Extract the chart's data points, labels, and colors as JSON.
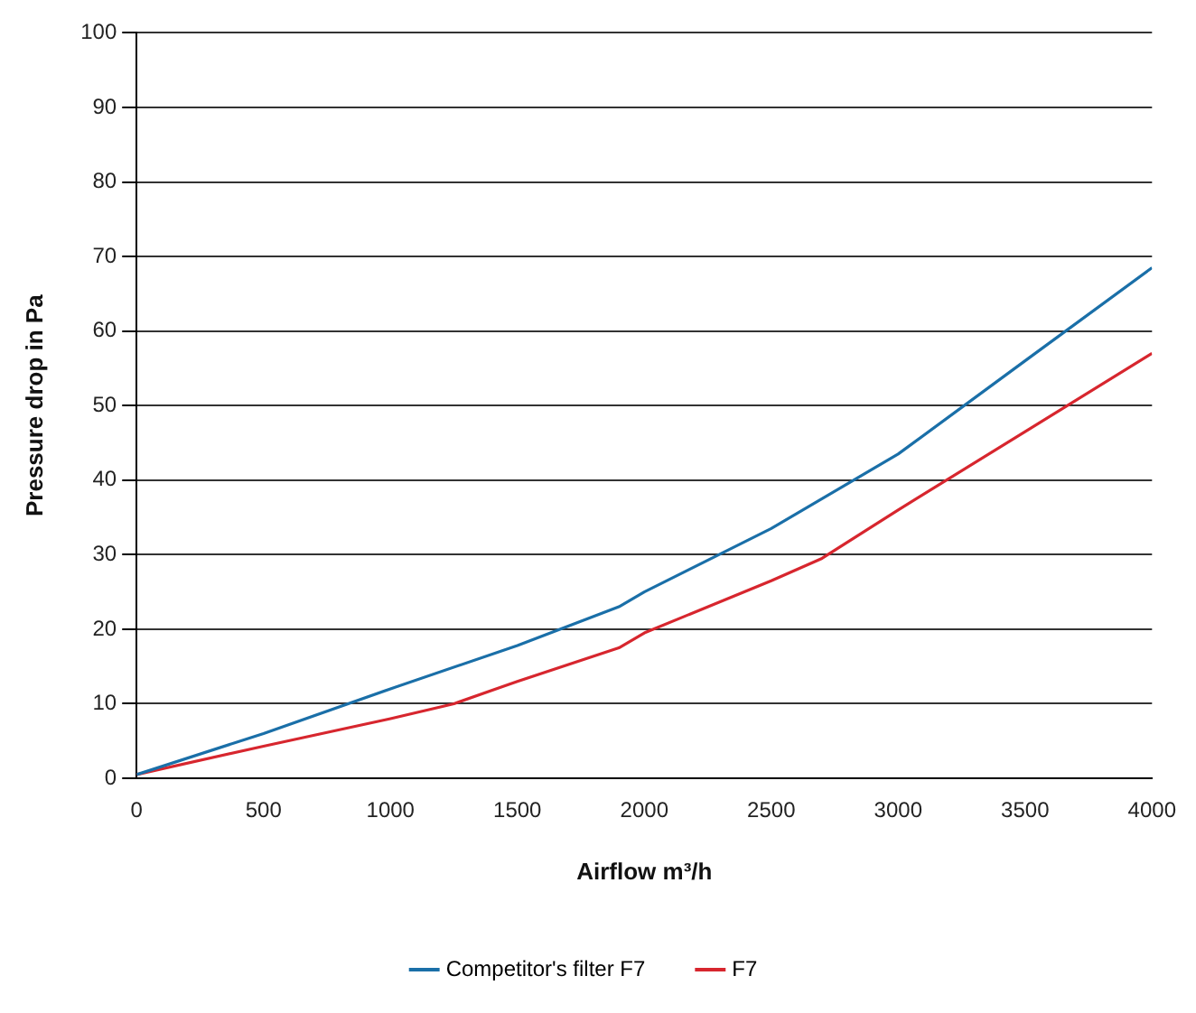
{
  "chart_data": {
    "type": "line",
    "xlabel": "Airflow m³/h",
    "ylabel": "Pressure drop in Pa",
    "xlim": [
      0,
      4000
    ],
    "xticks": [
      0,
      500,
      1000,
      1500,
      2000,
      2500,
      3000,
      3500,
      4000
    ],
    "ylim": [
      0,
      100
    ],
    "yticks": [
      0,
      10,
      20,
      30,
      40,
      50,
      60,
      70,
      80,
      90,
      100
    ],
    "grid": "y",
    "legend": "bottom",
    "marker": "none",
    "line_style": "solid",
    "series": [
      {
        "name": "Competitor's filter F7",
        "color": "#1a6fa8",
        "x": [
          0,
          500,
          1000,
          1500,
          1900,
          2000,
          2500,
          3000,
          3500,
          4000
        ],
        "values": [
          0.5,
          6,
          12,
          17.8,
          23,
          25,
          33.5,
          43.5,
          56,
          68.5
        ]
      },
      {
        "name": "F7",
        "color": "#d7262e",
        "x": [
          0,
          500,
          1000,
          1250,
          1500,
          1900,
          2000,
          2500,
          2700,
          3000,
          3500,
          4000
        ],
        "values": [
          0.5,
          4.3,
          8,
          10,
          13,
          17.5,
          19.5,
          26.5,
          29.5,
          36,
          46.5,
          57
        ]
      }
    ]
  }
}
